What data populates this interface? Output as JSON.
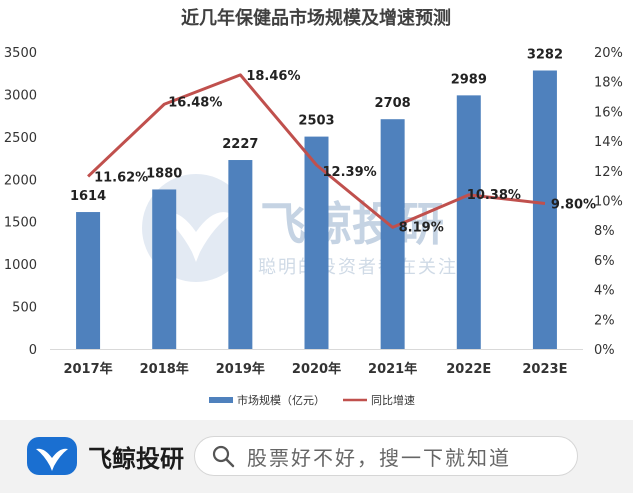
{
  "chart_data": {
    "type": "bar",
    "title": "近几年保健品市场规模及增速预测",
    "categories": [
      "2017年",
      "2018年",
      "2019年",
      "2020年",
      "2021年",
      "2022E",
      "2023E"
    ],
    "series": [
      {
        "name": "市场规模（亿元）",
        "type": "bar",
        "axis": "left",
        "color": "#4f81bd",
        "values": [
          1614,
          1880,
          2227,
          2503,
          2708,
          2989,
          3282
        ],
        "labels": [
          "1614",
          "1880",
          "2227",
          "2503",
          "2708",
          "2989",
          "3282"
        ]
      },
      {
        "name": "同比增速",
        "type": "line",
        "axis": "right",
        "color": "#c0504d",
        "values": [
          11.62,
          16.48,
          18.46,
          12.39,
          8.19,
          10.38,
          9.8
        ],
        "labels": [
          "11.62%",
          "16.48%",
          "18.46%",
          "12.39%",
          "8.19%",
          "10.38%",
          "9.80%"
        ]
      }
    ],
    "y_left": {
      "range": [
        0,
        3500
      ],
      "ticks": [
        "0",
        "500",
        "1000",
        "1500",
        "2000",
        "2500",
        "3000",
        "3500"
      ]
    },
    "y_right": {
      "range": [
        0,
        20
      ],
      "ticks": [
        "0%",
        "2%",
        "4%",
        "6%",
        "8%",
        "10%",
        "12%",
        "14%",
        "16%",
        "18%",
        "20%"
      ]
    },
    "grid": false,
    "legend_position": "bottom"
  },
  "watermark": {
    "title": "飞鲸投研",
    "subtitle": "聪明的投资者都在关注"
  },
  "footer": {
    "brand_name": "飞鲸投研",
    "search_placeholder": "股票好不好，搜一下就知道",
    "logo_icon": "whale-tail-icon",
    "search_icon": "magnifier-icon",
    "brand_color": "#1a6fd1"
  }
}
